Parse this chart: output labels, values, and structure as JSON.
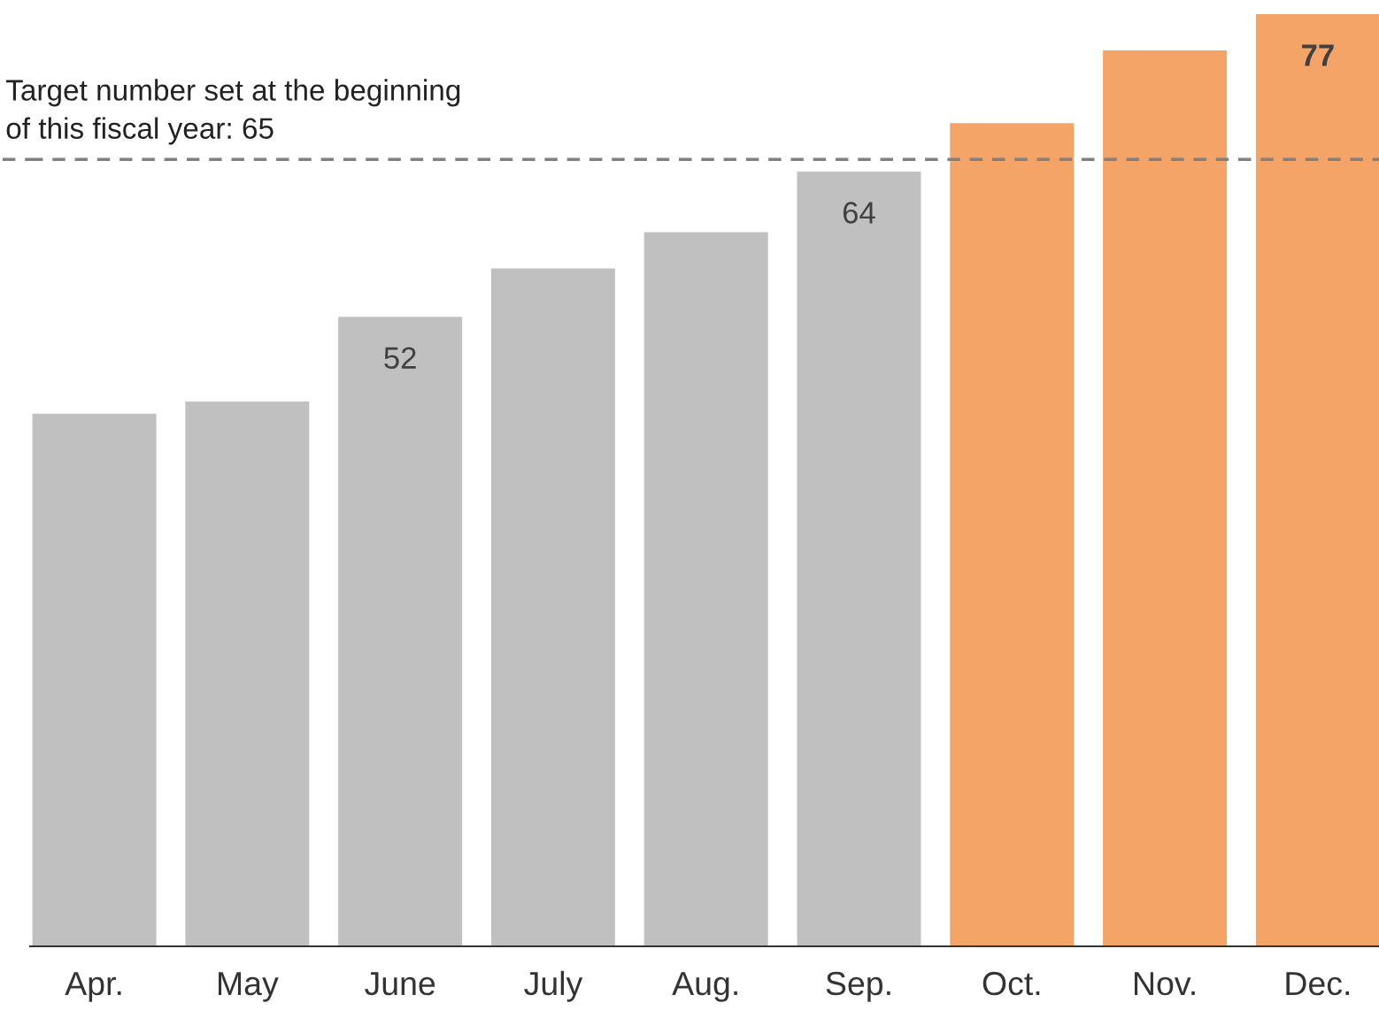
{
  "chart_data": {
    "type": "bar",
    "categories": [
      "Apr.",
      "May",
      "June",
      "July",
      "Aug.",
      "Sep.",
      "Oct.",
      "Nov.",
      "Dec."
    ],
    "values": [
      44,
      45,
      52,
      56,
      59,
      64,
      68,
      74,
      77
    ],
    "colors": [
      "#c0c0c0",
      "#c0c0c0",
      "#c0c0c0",
      "#c0c0c0",
      "#c0c0c0",
      "#c0c0c0",
      "#f3a466",
      "#f3a466",
      "#f3a466"
    ],
    "value_labels": [
      null,
      null,
      "52",
      null,
      null,
      "64",
      null,
      null,
      "77"
    ],
    "ref_lines": [
      {
        "axis": "y",
        "value": 65,
        "label": "Target number set at the beginning\nof this fiscal year: 65",
        "color": "#808080",
        "line_style": "dashed"
      }
    ],
    "grid": false,
    "legend": false
  }
}
